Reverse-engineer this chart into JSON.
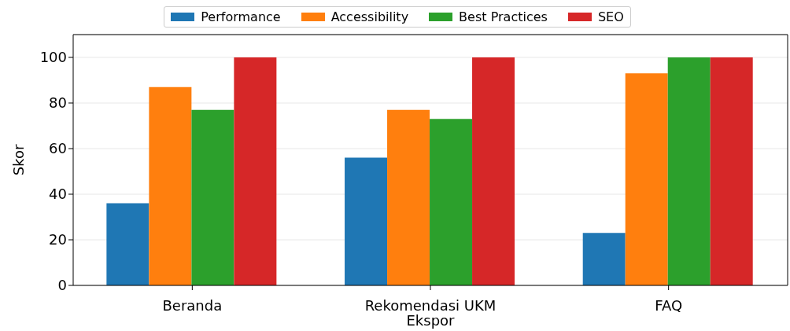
{
  "chart_data": {
    "type": "bar",
    "ylabel": "Skor",
    "categories": [
      "Beranda",
      "Rekomendasi UKM Ekspor",
      "FAQ"
    ],
    "series": [
      {
        "name": "Performance",
        "color": "#1f77b4",
        "values": [
          36,
          56,
          23
        ]
      },
      {
        "name": "Accessibility",
        "color": "#ff7f0e",
        "values": [
          87,
          77,
          93
        ]
      },
      {
        "name": "Best Practices",
        "color": "#2ca02c",
        "values": [
          77,
          73,
          100
        ]
      },
      {
        "name": "SEO",
        "color": "#d62728",
        "values": [
          100,
          100,
          100
        ]
      }
    ],
    "ylim": [
      0,
      110
    ],
    "yticks": [
      0,
      20,
      40,
      60,
      80,
      100
    ],
    "grid": "y",
    "legend": "top"
  }
}
